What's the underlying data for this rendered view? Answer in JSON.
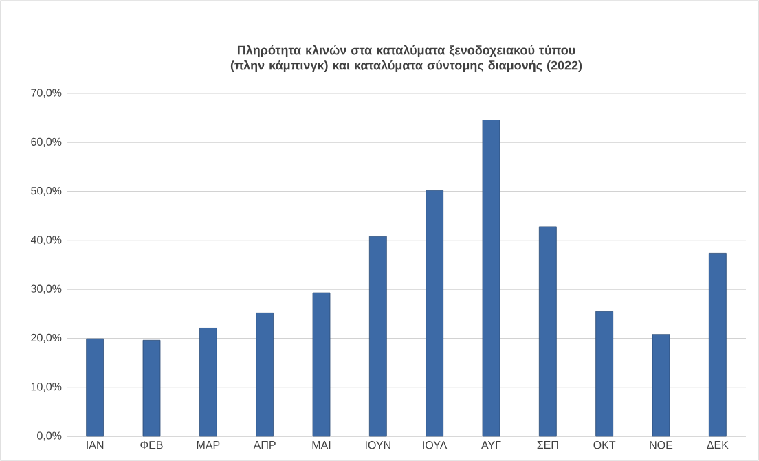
{
  "chart_data": {
    "type": "bar",
    "title": "Πληρότητα κλινών στα καταλύματα ξενοδοχειακού τύπου (πλην κάμπινγκ) και καταλύματα σύντομης διαμονής (2022)",
    "categories": [
      "ΙΑΝ",
      "ΦΕΒ",
      "ΜΑΡ",
      "ΑΠΡ",
      "ΜΑΙ",
      "ΙΟΥΝ",
      "ΙΟΥΛ",
      "ΑΥΓ",
      "ΣΕΠ",
      "ΟΚΤ",
      "ΝΟΕ",
      "ΔΕΚ"
    ],
    "values": [
      19.9,
      19.6,
      22.1,
      25.2,
      29.3,
      40.8,
      50.2,
      64.6,
      42.8,
      25.5,
      20.8,
      37.4
    ],
    "color": "#3d6aa6",
    "ylim": [
      0,
      70
    ],
    "yticks": [
      {
        "value": 0,
        "label": "0,0%"
      },
      {
        "value": 10,
        "label": "10,0%"
      },
      {
        "value": 20,
        "label": "20,0%"
      },
      {
        "value": 30,
        "label": "30,0%"
      },
      {
        "value": 40,
        "label": "40,0%"
      },
      {
        "value": 50,
        "label": "50,0%"
      },
      {
        "value": 60,
        "label": "60,0%"
      },
      {
        "value": 70,
        "label": "70,0%"
      }
    ],
    "grid": "y"
  }
}
